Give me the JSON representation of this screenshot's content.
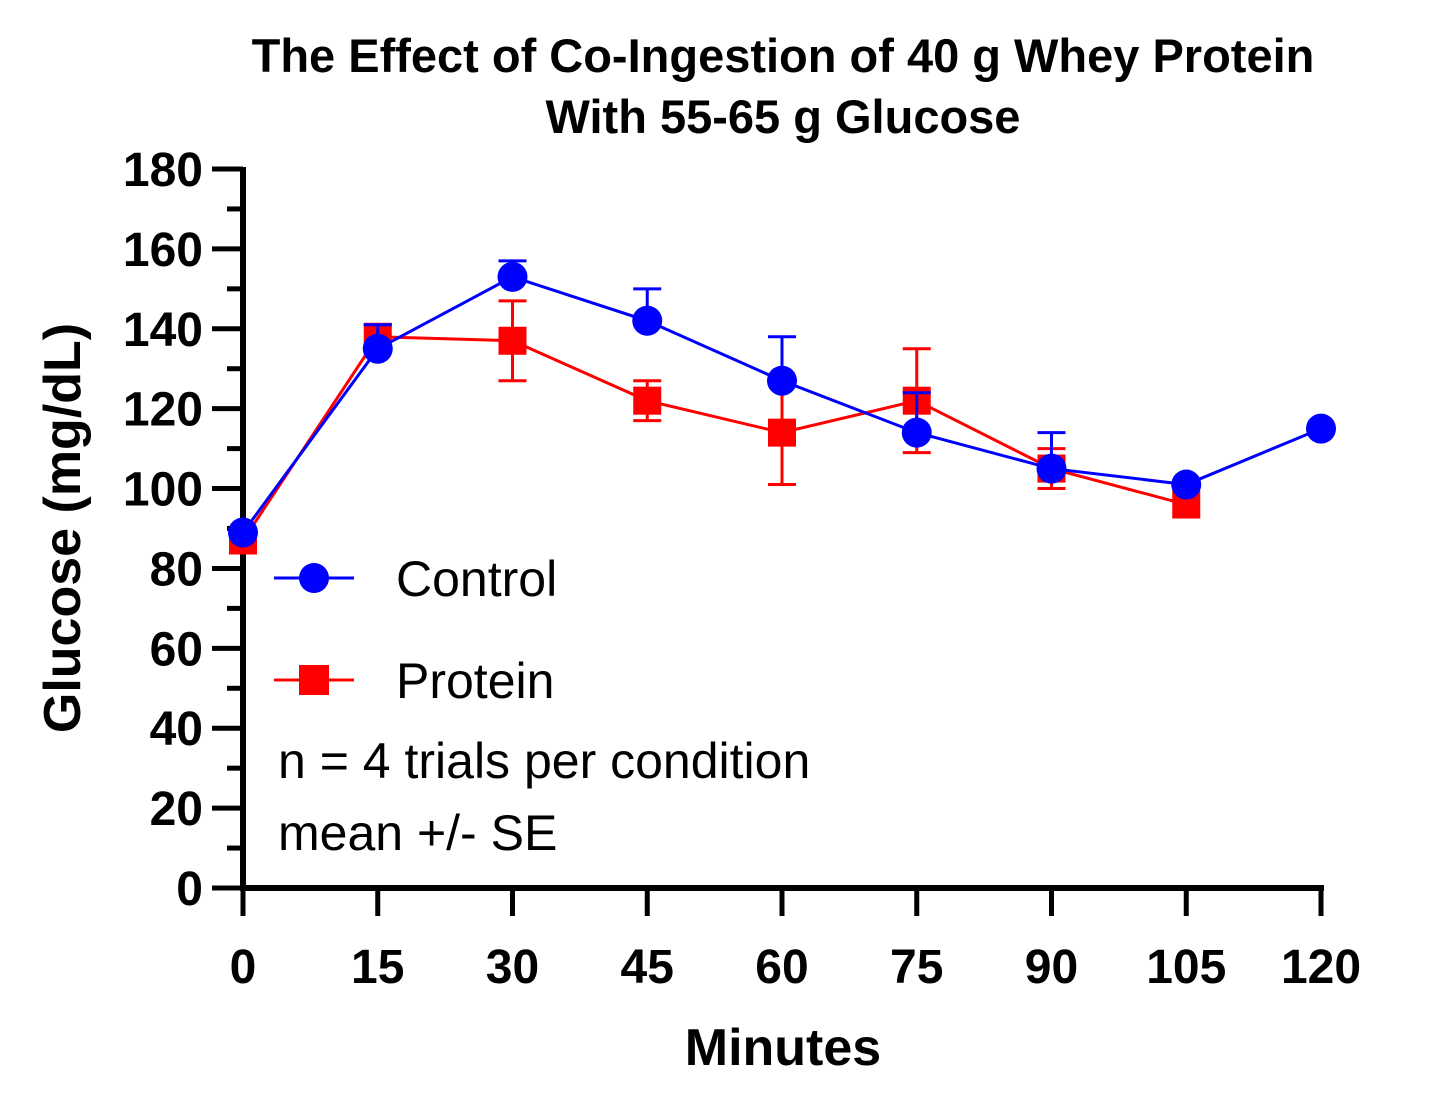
{
  "colors": {
    "control": "#0000ff",
    "protein": "#ff0000",
    "axis": "#000000"
  },
  "chart_data": {
    "type": "line",
    "title_lines": [
      "The Effect of Co-Ingestion of 40 g Whey Protein",
      "With 55-65 g Glucose"
    ],
    "xlabel": "Minutes",
    "ylabel": "Glucose (mg/dL)",
    "xlim": [
      0,
      120
    ],
    "ylim": [
      0,
      180
    ],
    "x_ticks": [
      "0",
      "15",
      "30",
      "45",
      "60",
      "75",
      "90",
      "105",
      "120"
    ],
    "y_ticks": [
      "0",
      "20",
      "40",
      "60",
      "80",
      "100",
      "120",
      "140",
      "160",
      "180"
    ],
    "grid": false,
    "legend_position": "left-center",
    "series": [
      {
        "name": "Control",
        "marker": "circle",
        "x": [
          0,
          15,
          30,
          45,
          60,
          75,
          90,
          105,
          120
        ],
        "y": [
          89,
          135,
          153,
          142,
          127,
          114,
          105,
          101,
          115
        ],
        "error": [
          0,
          6,
          4,
          8,
          11,
          10,
          9,
          0,
          0
        ]
      },
      {
        "name": "Protein",
        "marker": "square",
        "x": [
          0,
          15,
          30,
          45,
          60,
          75,
          90,
          105
        ],
        "y": [
          87,
          138,
          137,
          122,
          114,
          122,
          105,
          96
        ],
        "error": [
          0,
          3,
          10,
          5,
          13,
          13,
          5,
          0
        ]
      }
    ],
    "annotations": [
      "n = 4 trials per condition",
      "mean +/- SE"
    ]
  }
}
